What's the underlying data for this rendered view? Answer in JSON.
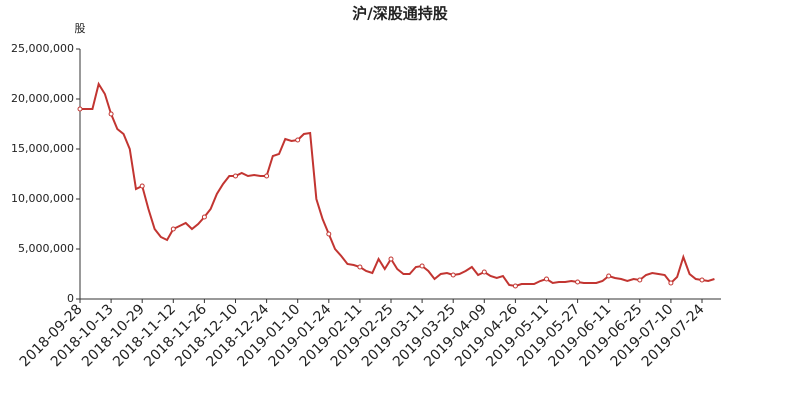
{
  "chart_data": {
    "type": "line",
    "title": "沪/深股通持股",
    "y_label": "股",
    "categories": [
      "2018-09-28",
      null,
      null,
      null,
      null,
      "2018-10-13",
      null,
      null,
      null,
      null,
      "2018-10-29",
      null,
      null,
      null,
      null,
      "2018-11-12",
      null,
      null,
      null,
      null,
      "2018-11-26",
      null,
      null,
      null,
      null,
      "2018-12-10",
      null,
      null,
      null,
      null,
      "2018-12-24",
      null,
      null,
      null,
      null,
      "2019-01-10",
      null,
      null,
      null,
      null,
      "2019-01-24",
      null,
      null,
      null,
      null,
      "2019-02-11",
      null,
      null,
      null,
      null,
      "2019-02-25",
      null,
      null,
      null,
      null,
      "2019-03-11",
      null,
      null,
      null,
      null,
      "2019-03-25",
      null,
      null,
      null,
      null,
      "2019-04-09",
      null,
      null,
      null,
      null,
      "2019-04-26",
      null,
      null,
      null,
      null,
      "2019-05-11",
      null,
      null,
      null,
      null,
      "2019-05-27",
      null,
      null,
      null,
      null,
      "2019-06-11",
      null,
      null,
      null,
      null,
      "2019-06-25",
      null,
      null,
      null,
      null,
      "2019-07-10",
      null,
      null,
      null,
      null,
      "2019-07-24",
      null,
      null
    ],
    "series": [
      {
        "name": "沪/深股通持股",
        "color": "#c23531",
        "values": [
          19000000,
          19000000,
          19000000,
          21500000,
          20500000,
          18500000,
          17000000,
          16500000,
          15000000,
          11000000,
          11300000,
          9000000,
          7000000,
          6200000,
          5900000,
          7000000,
          7300000,
          7600000,
          7000000,
          7500000,
          8200000,
          9000000,
          10500000,
          11500000,
          12300000,
          12300000,
          12600000,
          12300000,
          12400000,
          12300000,
          12300000,
          14300000,
          14500000,
          16000000,
          15800000,
          15900000,
          16500000,
          16600000,
          10000000,
          8000000,
          6500000,
          5000000,
          4300000,
          3500000,
          3400000,
          3200000,
          2800000,
          2600000,
          4000000,
          3000000,
          4000000,
          3000000,
          2500000,
          2500000,
          3200000,
          3300000,
          2800000,
          2000000,
          2500000,
          2600000,
          2400000,
          2500000,
          2800000,
          3200000,
          2400000,
          2700000,
          2300000,
          2100000,
          2300000,
          1400000,
          1300000,
          1500000,
          1500000,
          1500000,
          1800000,
          2000000,
          1600000,
          1700000,
          1700000,
          1800000,
          1700000,
          1600000,
          1600000,
          1600000,
          1800000,
          2300000,
          2100000,
          2000000,
          1800000,
          2000000,
          1900000,
          2400000,
          2600000,
          2500000,
          2400000,
          1600000,
          2200000,
          4200000,
          2500000,
          2000000,
          1900000,
          1800000,
          2000000
        ]
      }
    ],
    "ylim": [
      0,
      25000000
    ],
    "yticks": [
      0,
      {
        "value": 5000000,
        "label": "5,000,000"
      },
      {
        "value": 10000000,
        "label": "10,000,000"
      },
      {
        "value": 15000000,
        "label": "15,000,000"
      },
      {
        "value": 20000000,
        "label": "20,000,000"
      },
      {
        "value": 25000000,
        "label": "25,000,000"
      }
    ]
  }
}
